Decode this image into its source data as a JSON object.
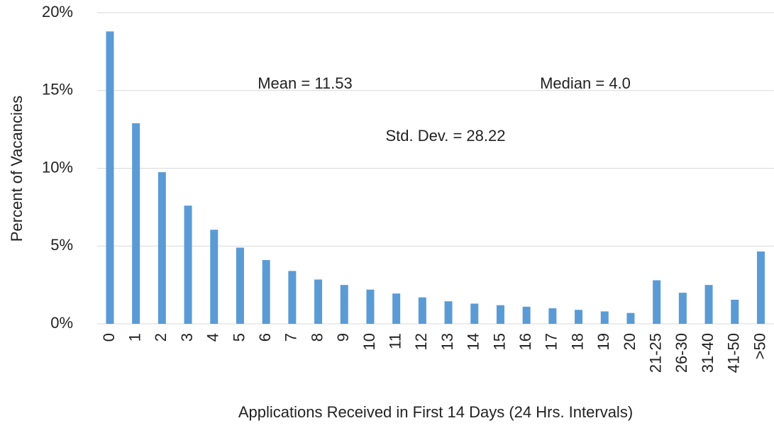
{
  "chart_data": {
    "type": "bar",
    "x_label": "Applications Received in First 14 Days (24 Hrs. Intervals)",
    "y_label": "Percent of Vacancies",
    "annotations": [
      "Mean = 11.53",
      "Median = 4.0",
      "Std. Dev. = 28.22"
    ],
    "categories": [
      "0",
      "1",
      "2",
      "3",
      "4",
      "5",
      "6",
      "7",
      "8",
      "9",
      "10",
      "11",
      "12",
      "13",
      "14",
      "15",
      "16",
      "17",
      "18",
      "19",
      "20",
      "21-25",
      "26-30",
      "31-40",
      "41-50",
      ">50"
    ],
    "values": [
      18.8,
      12.9,
      9.75,
      7.6,
      6.05,
      4.9,
      4.1,
      3.4,
      2.85,
      2.5,
      2.2,
      1.95,
      1.7,
      1.45,
      1.3,
      1.2,
      1.1,
      1.0,
      0.9,
      0.8,
      0.7,
      2.8,
      2.0,
      2.5,
      1.55,
      4.65
    ],
    "color": "#5b9bd5",
    "ylim": [
      0,
      20
    ],
    "yticks": [
      {
        "value": 0,
        "label": "0%"
      },
      {
        "value": 5,
        "label": "5%"
      },
      {
        "value": 10,
        "label": "10%"
      },
      {
        "value": 15,
        "label": "15%"
      },
      {
        "value": 20,
        "label": "20%"
      }
    ],
    "grid": true
  }
}
